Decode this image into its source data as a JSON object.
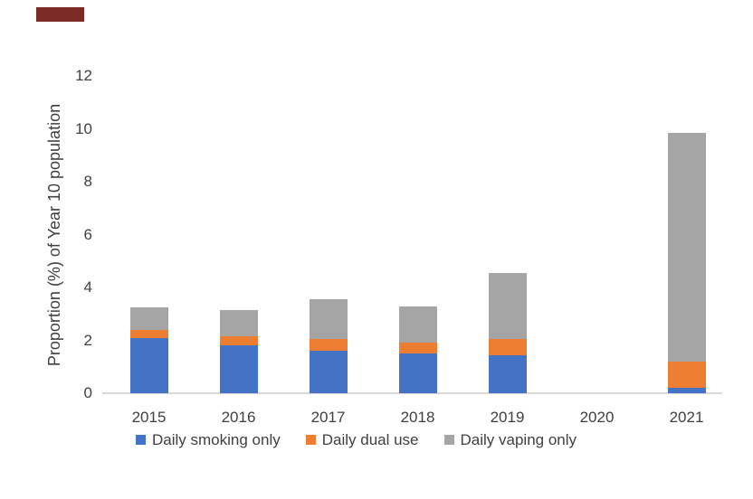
{
  "page": {
    "background": "#ffffff",
    "text_color": "#404040",
    "axis_line_color": "#d9d9d9"
  },
  "decor": {
    "top_left_bar_color": "#7b2b24"
  },
  "chart_data": {
    "type": "bar",
    "stacked": true,
    "title": "",
    "xlabel": "",
    "ylabel": "Proportion (%) of Year 10 population",
    "categories": [
      "2015",
      "2016",
      "2017",
      "2018",
      "2019",
      "2020",
      "2021"
    ],
    "series": [
      {
        "name": "Daily smoking only",
        "color": "#4472c4",
        "values": [
          2.1,
          1.8,
          1.6,
          1.5,
          1.45,
          null,
          0.2
        ]
      },
      {
        "name": "Daily dual use",
        "color": "#ed7d31",
        "values": [
          0.3,
          0.35,
          0.45,
          0.4,
          0.6,
          null,
          1.0
        ]
      },
      {
        "name": "Daily vaping only",
        "color": "#a5a5a5",
        "values": [
          0.85,
          1.0,
          1.5,
          1.4,
          2.5,
          null,
          8.65
        ]
      }
    ],
    "ylim": [
      0,
      12
    ],
    "yticks": [
      0,
      2,
      4,
      6,
      8,
      10,
      12
    ],
    "grid": false,
    "legend_position": "bottom"
  }
}
